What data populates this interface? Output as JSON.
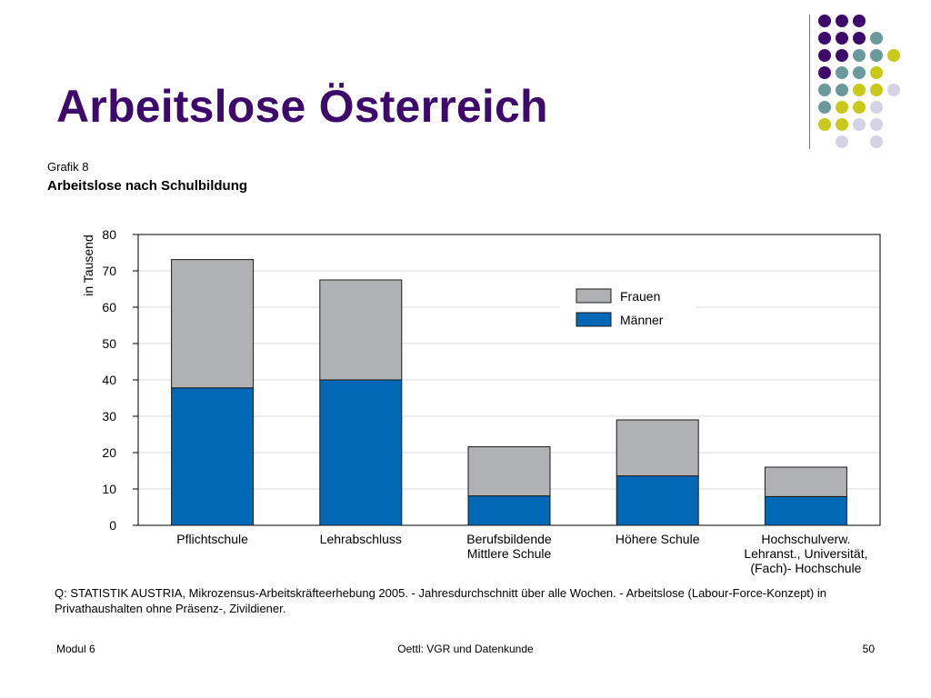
{
  "slide": {
    "title": "Arbeitslose Österreich",
    "figure_label": "Grafik 8",
    "chart_heading": "Arbeitslose nach Schulbildung",
    "source_note": "Q: STATISTIK AUSTRIA, Mikrozensus-Arbeitskräfteerhebung 2005. - Jahresdurchschnitt über alle Wochen. - Arbeitslose (Labour-Force-Konzept) in Privathaushalten ohne Präsenz-, Zivildiener.",
    "footer": {
      "left": "Modul 6",
      "center": "Oettl: VGR und Datenkunde",
      "page": "50"
    }
  },
  "decor_colors": {
    "purple": "#3d0a6b",
    "teal": "#6b9a9c",
    "yellow": "#c9c91a",
    "lavender": "#d4d3e6"
  },
  "chart_data": {
    "type": "bar",
    "stacked": true,
    "title": "Arbeitslose nach Schulbildung",
    "ylabel": "in Tausend",
    "xlabel": "",
    "ylim": [
      0,
      80
    ],
    "yticks": [
      "0",
      "10",
      "20",
      "30",
      "40",
      "50",
      "60",
      "70",
      "80"
    ],
    "grid": true,
    "legend_position": "top-right",
    "categories": [
      [
        "Pflichtschule"
      ],
      [
        "Lehrabschluss"
      ],
      [
        "Berufsbildende",
        "Mittlere Schule"
      ],
      [
        "Höhere Schule"
      ],
      [
        "Hochschulverw.",
        "Lehranst., Universität,",
        "(Fach)- Hochschule"
      ]
    ],
    "series": [
      {
        "name": "Männer",
        "color": "#0068b4",
        "values": [
          37.8,
          40.0,
          8.1,
          13.6,
          7.9
        ]
      },
      {
        "name": "Frauen",
        "color": "#b0b1b3",
        "values": [
          35.3,
          27.5,
          13.5,
          15.4,
          8.1
        ]
      }
    ],
    "legend_order": [
      "Frauen",
      "Männer"
    ]
  }
}
